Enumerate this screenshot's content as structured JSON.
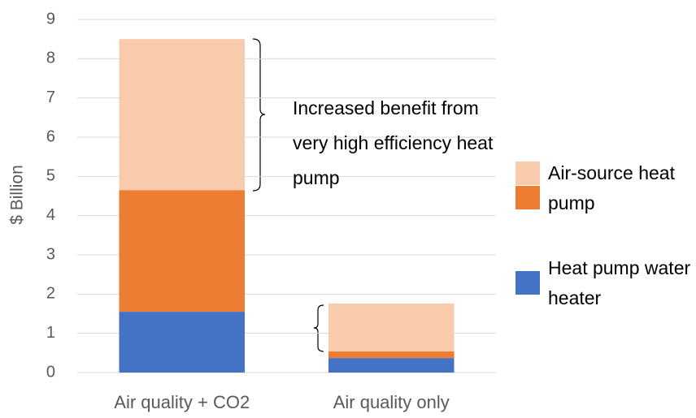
{
  "chart_data": {
    "type": "stacked_bar",
    "categories": [
      "Air quality + CO2",
      "Air quality only"
    ],
    "series": [
      {
        "name": "Heat pump water heater",
        "color": "#4472c4",
        "values": [
          1.55,
          0.37
        ]
      },
      {
        "name": "Air-source heat pump",
        "color": "#ed7d31",
        "values": [
          3.1,
          0.17
        ]
      },
      {
        "color": "#f8cbad",
        "values": [
          3.85,
          1.22
        ]
      }
    ],
    "y_label": "$ Billion",
    "annotation": "Increased benefit from very high efficiency heat pump",
    "ylim": [
      0,
      9
    ],
    "yticks": [
      0,
      1,
      2,
      3,
      4,
      5,
      6,
      7,
      8,
      9
    ],
    "grid": true
  }
}
